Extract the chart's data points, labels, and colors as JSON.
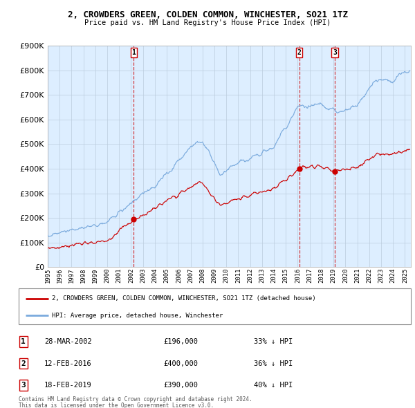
{
  "title": "2, CROWDERS GREEN, COLDEN COMMON, WINCHESTER, SO21 1TZ",
  "subtitle": "Price paid vs. HM Land Registry's House Price Index (HPI)",
  "legend_label_red": "2, CROWDERS GREEN, COLDEN COMMON, WINCHESTER, SO21 1TZ (detached house)",
  "legend_label_blue": "HPI: Average price, detached house, Winchester",
  "transactions": [
    {
      "num": 1,
      "date": "28-MAR-2002",
      "price": 196000,
      "hpi_pct": "33% ↓ HPI"
    },
    {
      "num": 2,
      "date": "12-FEB-2016",
      "price": 400000,
      "hpi_pct": "36% ↓ HPI"
    },
    {
      "num": 3,
      "date": "18-FEB-2019",
      "price": 390000,
      "hpi_pct": "40% ↓ HPI"
    }
  ],
  "transaction_dates_decimal": [
    2002.23,
    2016.12,
    2019.12
  ],
  "footer_line1": "Contains HM Land Registry data © Crown copyright and database right 2024.",
  "footer_line2": "This data is licensed under the Open Government Licence v3.0.",
  "red_color": "#cc0000",
  "blue_color": "#7aaadd",
  "bg_color": "#ddeeff",
  "ylim": [
    0,
    900000
  ],
  "xlim_start": 1995.0,
  "xlim_end": 2025.5,
  "yticks": [
    0,
    100000,
    200000,
    300000,
    400000,
    500000,
    600000,
    700000,
    800000,
    900000
  ],
  "grid_color": "#bbccdd",
  "spine_color": "#aaaaaa"
}
